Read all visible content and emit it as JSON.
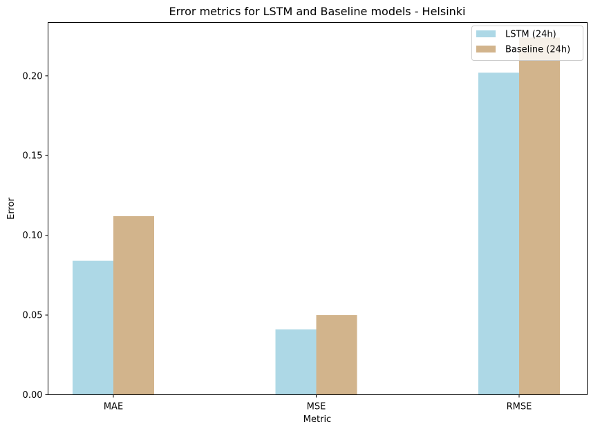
{
  "chart_data": {
    "type": "bar",
    "title": "Error metrics for LSTM and Baseline models - Helsinki",
    "xlabel": "Metric",
    "ylabel": "Error",
    "categories": [
      "MAE",
      "MSE",
      "RMSE"
    ],
    "series": [
      {
        "name": "LSTM (24h)",
        "values": [
          0.084,
          0.041,
          0.202
        ],
        "color": "#add8e6"
      },
      {
        "name": "Baseline (24h)",
        "values": [
          0.112,
          0.05,
          0.224
        ],
        "color": "#d2b48c"
      }
    ],
    "ylim": [
      0,
      0.2335
    ],
    "yticks": [
      0.0,
      0.05,
      0.1,
      0.15,
      0.2
    ],
    "ytick_labels": [
      "0.00",
      "0.05",
      "0.10",
      "0.15",
      "0.20"
    ],
    "grid": false,
    "legend_position": "top-right"
  }
}
